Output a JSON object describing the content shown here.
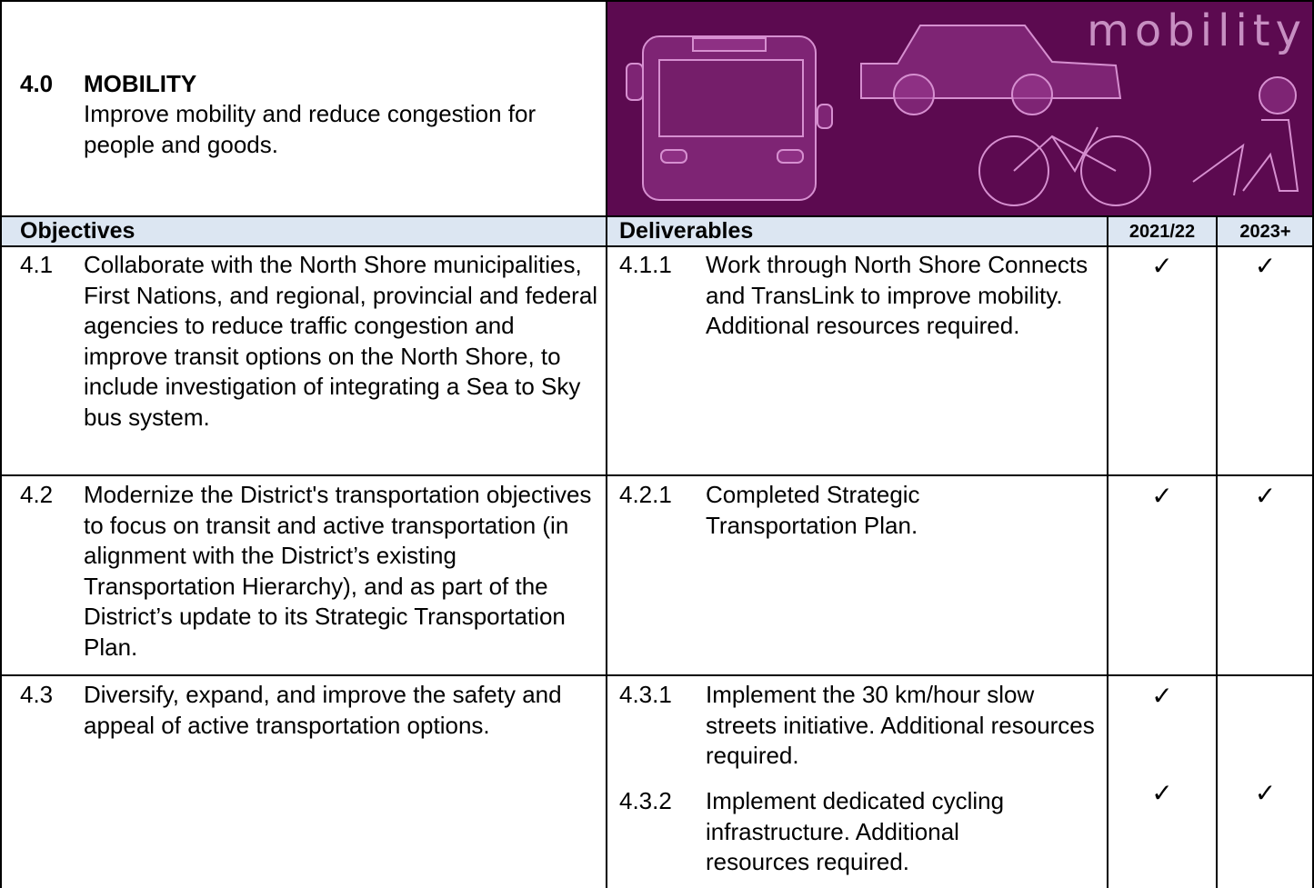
{
  "header": {
    "number": "4.0",
    "title": "MOBILITY",
    "description": "Improve mobility and reduce congestion for people and goods.",
    "image_text": "mobility"
  },
  "table": {
    "columns": [
      "Objectives",
      "Deliverables",
      "2021/22",
      "2023+"
    ],
    "rows": [
      {
        "number": "4.1",
        "objective": "Collaborate with the North Shore municipalities, First Nations, and regional, provincial and federal agencies to reduce traffic congestion and improve transit options on the North Shore, to include investigation of integrating a Sea to Sky bus system.",
        "deliverables": [
          {
            "number": "4.1.1",
            "text": "Work through North Shore Connects and TransLink to improve mobility. Additional resources required.",
            "marks": [
              "✓",
              "✓"
            ]
          }
        ]
      },
      {
        "number": "4.2",
        "objective": "Modernize the District's transportation objectives to focus on transit and active transportation (in alignment with the District’s existing Transportation Hierarchy), and as part of the District’s update to its Strategic Transportation Plan.",
        "deliverables": [
          {
            "number": "4.2.1",
            "text": "Completed Strategic Transportation Plan.",
            "marks": [
              "✓",
              "✓"
            ]
          }
        ]
      },
      {
        "number": "4.3",
        "objective": "Diversify, expand, and improve the safety and appeal of active transportation options.",
        "deliverables": [
          {
            "number": "4.3.1",
            "text": "Implement the 30 km/hour slow streets initiative. Additional resources required.",
            "marks": [
              "✓",
              null
            ]
          },
          {
            "number": "4.3.2",
            "text": "Implement dedicated cycling infrastructure. Additional resources required.",
            "marks": [
              "✓",
              "✓"
            ]
          }
        ]
      }
    ]
  }
}
